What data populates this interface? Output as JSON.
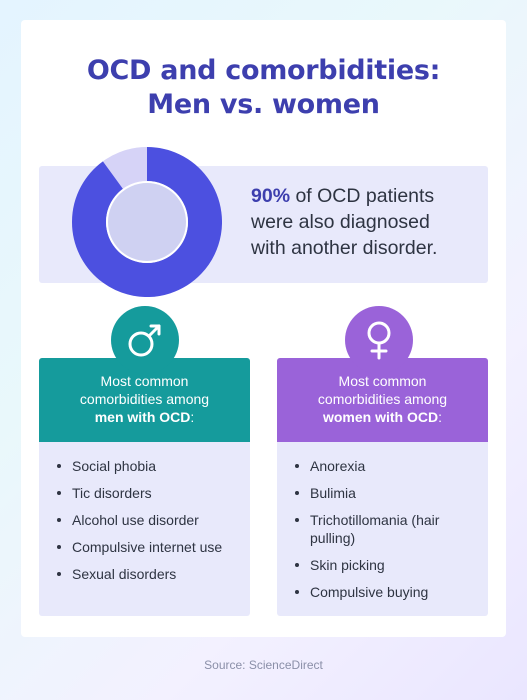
{
  "title": {
    "line1": "OCD and comorbidities:",
    "line2": "Men vs. women"
  },
  "stat": {
    "percent_text": "90%",
    "line1_rest": " of OCD patients",
    "line2": "were also diagnosed",
    "line3": "with another disorder.",
    "percent_value": 0.9
  },
  "men": {
    "icon": "male-symbol-icon",
    "header_line1": "Most common",
    "header_line2": "comorbidities among",
    "header_bold": "men with OCD",
    "header_suffix": ":",
    "items": [
      "Social phobia",
      "Tic disorders",
      "Alcohol use disorder",
      "Compulsive internet use",
      "Sexual disorders"
    ]
  },
  "women": {
    "icon": "female-symbol-icon",
    "header_line1": "Most common",
    "header_line2": "comorbidities among",
    "header_bold": "women with OCD",
    "header_suffix": ":",
    "items": [
      "Anorexia",
      "Bulimia",
      "Trichotillomania (hair pulling)",
      "Skin picking",
      "Compulsive buying"
    ]
  },
  "source": "Source: ScienceDirect",
  "colors": {
    "brand": "#3d3fae",
    "men": "#159b9c",
    "women": "#9a63d9",
    "panel": "#e8e9fb"
  }
}
